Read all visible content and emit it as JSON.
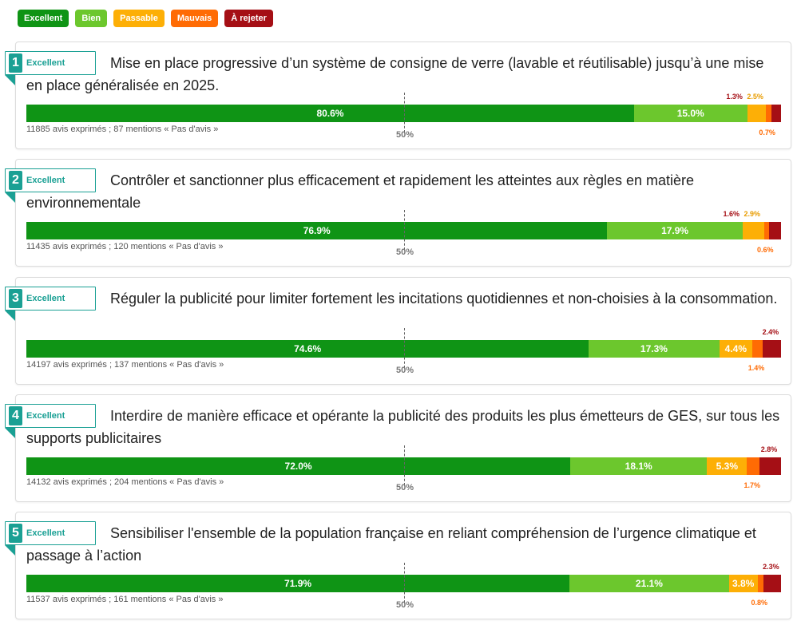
{
  "legend": [
    {
      "label": "Excellent",
      "color": "#0f9415"
    },
    {
      "label": "Bien",
      "color": "#6cc72d"
    },
    {
      "label": "Passable",
      "color": "#fdaf06"
    },
    {
      "label": "Mauvais",
      "color": "#ff6b04"
    },
    {
      "label": "À rejeter",
      "color": "#a50f15"
    }
  ],
  "midpoint_label": "50%",
  "chart_data": [
    {
      "type": "bar",
      "rank": "1",
      "grade": "Excellent",
      "title": "Mise en place progressive d’un système de consigne de verre (lavable et réutilisable) jusqu’à une mise en place généralisée en 2025.",
      "categories": [
        "Excellent",
        "Bien",
        "Passable",
        "Mauvais",
        "À rejeter"
      ],
      "values": [
        80.6,
        15.0,
        2.5,
        0.7,
        1.3
      ],
      "labels": [
        "80.6%",
        "15.0%",
        "2.5%",
        "0.7%",
        "1.3%"
      ],
      "counts": "11885 avis exprimés ; 87 mentions « Pas d'avis »"
    },
    {
      "type": "bar",
      "rank": "2",
      "grade": "Excellent",
      "title": "Contrôler et sanctionner plus efficacement et rapidement les atteintes aux règles en matière environnementale",
      "categories": [
        "Excellent",
        "Bien",
        "Passable",
        "Mauvais",
        "À rejeter"
      ],
      "values": [
        76.9,
        17.9,
        2.9,
        0.6,
        1.6
      ],
      "labels": [
        "76.9%",
        "17.9%",
        "2.9%",
        "0.6%",
        "1.6%"
      ],
      "counts": "11435 avis exprimés ; 120 mentions « Pas d'avis »"
    },
    {
      "type": "bar",
      "rank": "3",
      "grade": "Excellent",
      "title": "Réguler la publicité pour limiter fortement les incitations quotidiennes et non-choisies à la consommation.",
      "categories": [
        "Excellent",
        "Bien",
        "Passable",
        "Mauvais",
        "À rejeter"
      ],
      "values": [
        74.6,
        17.3,
        4.4,
        1.4,
        2.4
      ],
      "labels": [
        "74.6%",
        "17.3%",
        "4.4%",
        "1.4%",
        "2.4%"
      ],
      "counts": "14197 avis exprimés ; 137 mentions « Pas d'avis »"
    },
    {
      "type": "bar",
      "rank": "4",
      "grade": "Excellent",
      "title": "Interdire de manière efficace et opérante la publicité des produits les plus émetteurs de GES, sur tous les supports publicitaires",
      "categories": [
        "Excellent",
        "Bien",
        "Passable",
        "Mauvais",
        "À rejeter"
      ],
      "values": [
        72.0,
        18.1,
        5.3,
        1.7,
        2.8
      ],
      "labels": [
        "72.0%",
        "18.1%",
        "5.3%",
        "1.7%",
        "2.8%"
      ],
      "counts": "14132 avis exprimés ; 204 mentions « Pas d'avis »"
    },
    {
      "type": "bar",
      "rank": "5",
      "grade": "Excellent",
      "title": "Sensibiliser l'ensemble de la population française en reliant compréhension de l’urgence climatique et passage à l’action",
      "categories": [
        "Excellent",
        "Bien",
        "Passable",
        "Mauvais",
        "À rejeter"
      ],
      "values": [
        71.9,
        21.1,
        3.8,
        0.8,
        2.3
      ],
      "labels": [
        "71.9%",
        "21.1%",
        "3.8%",
        "0.8%",
        "2.3%"
      ],
      "counts": "11537 avis exprimés ; 161 mentions « Pas d'avis »"
    }
  ]
}
